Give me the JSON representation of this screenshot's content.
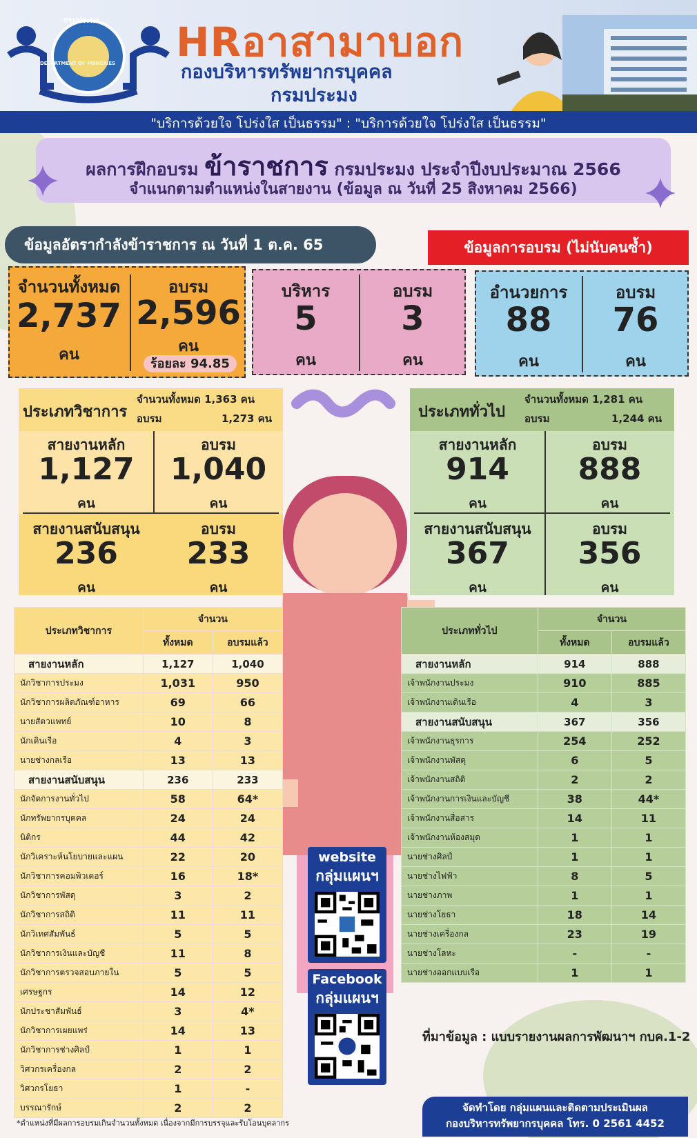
{
  "header": {
    "hr_title_a": "HR",
    "hr_title_b": "อาสามาบอก",
    "sub1": "กองบริหารทรัพยากรบุคคล",
    "sub2": "กรมประมง",
    "logo_text_top": "กรมประมง",
    "logo_text_bottom": "DEPARTMENT OF FISHERIES",
    "slogan": "\"บริการด้วยใจ โปร่งใส เป็นธรรม\" : \"บริการด้วยใจ โปร่งใส เป็นธรรม\""
  },
  "title": {
    "prefix": "ผลการฝึกอบรม",
    "big": "ข้าราชการ",
    "suffix": "กรมประมง ประจำปีงบประมาณ 2566",
    "line2": "จำแนกตามตำแหน่งในสายงาน (ข้อมูล ณ วันที่ 25 สิงหาคม 2566)"
  },
  "tags": {
    "strength": "ข้อมูลอัตรากำลังข้าราชการ ณ วันที่ 1 ต.ค. 65",
    "training": "ข้อมูลการอบรม (ไม่นับคนซ้ำ)"
  },
  "summary": {
    "total": {
      "label": "จำนวนทั้งหมด",
      "value": "2,737",
      "unit": "คน"
    },
    "trained": {
      "label": "อบรม",
      "value": "2,596",
      "unit": "คน",
      "percent": "ร้อยละ 94.85"
    },
    "executive": {
      "label": "บริหาร",
      "value": "5",
      "unit": "คน",
      "trained_label": "อบรม",
      "trained_value": "3",
      "trained_unit": "คน"
    },
    "director": {
      "label": "อำนวยการ",
      "value": "88",
      "unit": "คน",
      "trained_label": "อบรม",
      "trained_value": "76",
      "trained_unit": "คน"
    }
  },
  "academic": {
    "title": "ประเภทวิชาการ",
    "total_label": "จำนวนทั้งหมด 1,363 คน",
    "trained_label": "อบรม",
    "trained_value": "1,273 คน",
    "main_label": "สายงานหลัก",
    "main_value": "1,127",
    "main_unit": "คน",
    "main_tr_label": "อบรม",
    "main_tr_value": "1,040",
    "main_tr_unit": "คน",
    "sup_label": "สายงานสนับสนุน",
    "sup_value": "236",
    "sup_unit": "คน",
    "sup_tr_label": "อบรม",
    "sup_tr_value": "233",
    "sup_tr_unit": "คน"
  },
  "general": {
    "title": "ประเภททั่วไป",
    "total_label": "จำนวนทั้งหมด 1,281 คน",
    "trained_label": "อบรม",
    "trained_value": "1,244 คน",
    "main_label": "สายงานหลัก",
    "main_value": "914",
    "main_unit": "คน",
    "main_tr_label": "อบรม",
    "main_tr_value": "888",
    "main_tr_unit": "คน",
    "sup_label": "สายงานสนับสนุน",
    "sup_value": "367",
    "sup_unit": "คน",
    "sup_tr_label": "อบรม",
    "sup_tr_value": "356",
    "sup_tr_unit": "คน"
  },
  "acad_table": {
    "h_type": "ประเภทวิชาการ",
    "h_count": "จำนวน",
    "h_total": "ทั้งหมด",
    "h_trained": "อบรมแล้ว",
    "rows": [
      {
        "name": "สายงานหลัก",
        "total": "1,127",
        "trained": "1,040",
        "group": true
      },
      {
        "name": "นักวิชาการประมง",
        "total": "1,031",
        "trained": "950"
      },
      {
        "name": "นักวิชาการผลิตภัณฑ์อาหาร",
        "total": "69",
        "trained": "66"
      },
      {
        "name": "นายสัตวแพทย์",
        "total": "10",
        "trained": "8"
      },
      {
        "name": "นักเดินเรือ",
        "total": "4",
        "trained": "3"
      },
      {
        "name": "นายช่างกลเรือ",
        "total": "13",
        "trained": "13"
      },
      {
        "name": "สายงานสนับสนุน",
        "total": "236",
        "trained": "233",
        "group": true
      },
      {
        "name": "นักจัดการงานทั่วไป",
        "total": "58",
        "trained": "64*"
      },
      {
        "name": "นักทรัพยากรบุคคล",
        "total": "24",
        "trained": "24"
      },
      {
        "name": "นิติกร",
        "total": "44",
        "trained": "42"
      },
      {
        "name": "นักวิเคราะห์นโยบายและแผน",
        "total": "22",
        "trained": "20"
      },
      {
        "name": "นักวิชาการคอมพิวเตอร์",
        "total": "16",
        "trained": "18*"
      },
      {
        "name": "นักวิชาการพัสดุ",
        "total": "3",
        "trained": "2"
      },
      {
        "name": "นักวิชาการสถิติ",
        "total": "11",
        "trained": "11"
      },
      {
        "name": "นักวิเทศสัมพันธ์",
        "total": "5",
        "trained": "5"
      },
      {
        "name": "นักวิชาการเงินและบัญชี",
        "total": "11",
        "trained": "8"
      },
      {
        "name": "นักวิชาการตรวจสอบภายใน",
        "total": "5",
        "trained": "5"
      },
      {
        "name": "เศรษฐกร",
        "total": "14",
        "trained": "12"
      },
      {
        "name": "นักประชาสัมพันธ์",
        "total": "3",
        "trained": "4*"
      },
      {
        "name": "นักวิชาการเผยแพร่",
        "total": "14",
        "trained": "13"
      },
      {
        "name": "นักวิชาการช่างศิลป์",
        "total": "1",
        "trained": "1"
      },
      {
        "name": "วิศวกรเครื่องกล",
        "total": "2",
        "trained": "2"
      },
      {
        "name": "วิศวกรโยธา",
        "total": "1",
        "trained": "-"
      },
      {
        "name": "บรรณารักษ์",
        "total": "2",
        "trained": "2"
      }
    ]
  },
  "gen_table": {
    "h_type": "ประเภททั่วไป",
    "h_count": "จำนวน",
    "h_total": "ทั้งหมด",
    "h_trained": "อบรมแล้ว",
    "rows": [
      {
        "name": "สายงานหลัก",
        "total": "914",
        "trained": "888",
        "group": true
      },
      {
        "name": "เจ้าพนักงานประมง",
        "total": "910",
        "trained": "885"
      },
      {
        "name": "เจ้าพนักงานเดินเรือ",
        "total": "4",
        "trained": "3"
      },
      {
        "name": "สายงานสนับสนุน",
        "total": "367",
        "trained": "356",
        "group": true
      },
      {
        "name": "เจ้าพนักงานธุรการ",
        "total": "254",
        "trained": "252"
      },
      {
        "name": "เจ้าพนักงานพัสดุ",
        "total": "6",
        "trained": "5"
      },
      {
        "name": "เจ้าพนักงานสถิติ",
        "total": "2",
        "trained": "2"
      },
      {
        "name": "เจ้าพนักงานการเงินและบัญชี",
        "total": "38",
        "trained": "44*"
      },
      {
        "name": "เจ้าพนักงานสื่อสาร",
        "total": "14",
        "trained": "11"
      },
      {
        "name": "เจ้าพนักงานห้องสมุด",
        "total": "1",
        "trained": "1"
      },
      {
        "name": "นายช่างศิลป์",
        "total": "1",
        "trained": "1"
      },
      {
        "name": "นายช่างไฟฟ้า",
        "total": "8",
        "trained": "5"
      },
      {
        "name": "นายช่างภาพ",
        "total": "1",
        "trained": "1"
      },
      {
        "name": "นายช่างโยธา",
        "total": "18",
        "trained": "14"
      },
      {
        "name": "นายช่างเครื่องกล",
        "total": "23",
        "trained": "19"
      },
      {
        "name": "นายช่างโลหะ",
        "total": "-",
        "trained": "-"
      },
      {
        "name": "นายช่างออกแบบเรือ",
        "total": "1",
        "trained": "1"
      }
    ]
  },
  "qr": {
    "website_t1": "website",
    "website_t2": "กลุ่มแผนฯ",
    "facebook_t1": "Facebook",
    "facebook_t2": "กลุ่มแผนฯ"
  },
  "footer": {
    "source": "ที่มาข้อมูล : แบบรายงานผลการพัฒนาฯ กบค.1-2",
    "footnote": "*ตำแหน่งที่มีผลการอบรมเกินจำนวนทั้งหมด เนื่องจากมีการบรรจุและรับโอนบุคลากร",
    "credit1": "จัดทำโดย กลุ่มแผนและติดตามประเมินผล",
    "credit2": "กองบริหารทรัพยากรบุคคล โทร. 0 2561 4452"
  },
  "colors": {
    "navy": "#1c3f95",
    "orange": "#e0612a",
    "red": "#e41f26",
    "academic": "#f9dc85",
    "general": "#a9c48a"
  }
}
